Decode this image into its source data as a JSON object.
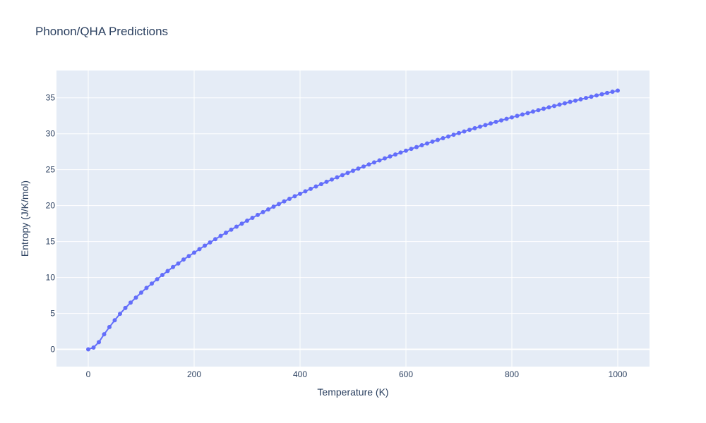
{
  "chart_data": {
    "type": "line",
    "title": "Phonon/QHA Predictions",
    "xlabel": "Temperature (K)",
    "ylabel": "Entropy (J/K/mol)",
    "xlim": [
      -60,
      1060
    ],
    "ylim": [
      -2.4,
      38.8
    ],
    "xticks": [
      0,
      200,
      400,
      600,
      800,
      1000
    ],
    "yticks": [
      0,
      5,
      10,
      15,
      20,
      25,
      30,
      35
    ],
    "grid": true,
    "legend": "none",
    "colors": {
      "plot_bg": "#e5ecf6",
      "grid": "#ffffff",
      "series": "#636efa",
      "text": "#2a3f5f"
    },
    "series": [
      {
        "mode": "lines+markers",
        "x": [
          0,
          10,
          20,
          30,
          40,
          50,
          60,
          70,
          80,
          90,
          100,
          110,
          120,
          130,
          140,
          150,
          160,
          170,
          180,
          190,
          200,
          210,
          220,
          230,
          240,
          250,
          260,
          270,
          280,
          290,
          300,
          310,
          320,
          330,
          340,
          350,
          360,
          370,
          380,
          390,
          400,
          410,
          420,
          430,
          440,
          450,
          460,
          470,
          480,
          490,
          500,
          510,
          520,
          530,
          540,
          550,
          560,
          570,
          580,
          590,
          600,
          610,
          620,
          630,
          640,
          650,
          660,
          670,
          680,
          690,
          700,
          710,
          720,
          730,
          740,
          750,
          760,
          770,
          780,
          790,
          800,
          810,
          820,
          830,
          840,
          850,
          860,
          870,
          880,
          890,
          900,
          910,
          920,
          930,
          940,
          950,
          960,
          970,
          980,
          990,
          1000
        ],
        "y": [
          0,
          0.25,
          1.0,
          2.1,
          3.1,
          4.05,
          4.95,
          5.75,
          6.5,
          7.2,
          7.9,
          8.55,
          9.15,
          9.75,
          10.35,
          10.9,
          11.45,
          11.95,
          12.5,
          12.98,
          13.45,
          13.95,
          14.42,
          14.88,
          15.33,
          15.78,
          16.22,
          16.65,
          17.07,
          17.49,
          17.9,
          18.3,
          18.7,
          19.09,
          19.47,
          19.85,
          20.22,
          20.59,
          20.95,
          21.3,
          21.65,
          21.99,
          22.33,
          22.66,
          22.99,
          23.31,
          23.63,
          23.94,
          24.25,
          24.55,
          24.85,
          25.15,
          25.44,
          25.73,
          26.01,
          26.29,
          26.57,
          26.84,
          27.11,
          27.38,
          27.64,
          27.9,
          28.15,
          28.4,
          28.65,
          28.9,
          29.14,
          29.38,
          29.62,
          29.86,
          30.09,
          30.32,
          30.55,
          30.77,
          30.99,
          31.21,
          31.43,
          31.65,
          31.86,
          32.07,
          32.28,
          32.48,
          32.68,
          32.88,
          33.08,
          33.28,
          33.48,
          33.67,
          33.86,
          34.05,
          34.24,
          34.43,
          34.61,
          34.79,
          34.97,
          35.15,
          35.33,
          35.5,
          35.67,
          35.84,
          36.0
        ]
      }
    ]
  }
}
